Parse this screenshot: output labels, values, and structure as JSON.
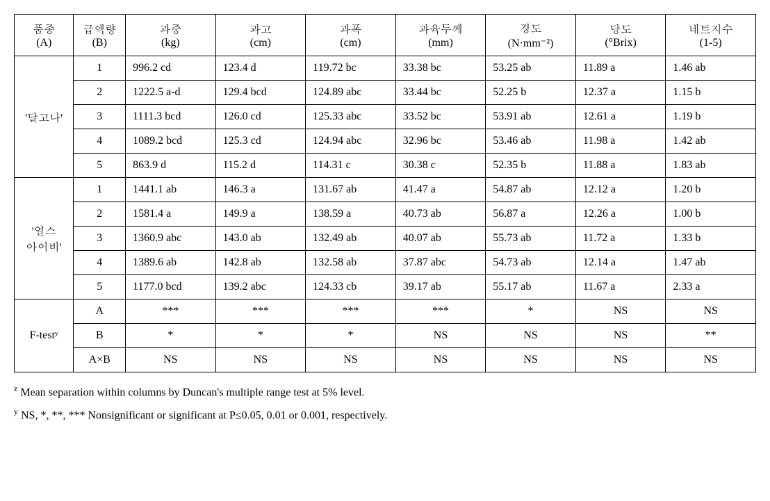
{
  "columns": [
    {
      "l1": "품종",
      "l2": "(A)"
    },
    {
      "l1": "급액량",
      "l2": "(B)"
    },
    {
      "l1": "과중",
      "l2": "(kg)"
    },
    {
      "l1": "과고",
      "l2": "(cm)"
    },
    {
      "l1": "과폭",
      "l2": "(cm)"
    },
    {
      "l1": "과육두께",
      "l2": "(mm)"
    },
    {
      "l1": "경도",
      "l2": "(N·mm⁻²)"
    },
    {
      "l1": "당도",
      "l2": "(°Brix)"
    },
    {
      "l1": "네트지수",
      "l2": "(1-5)"
    }
  ],
  "groups": [
    {
      "name": "'달고나'",
      "rows": [
        {
          "b": "1",
          "d": [
            "996.2 cd",
            "123.4 d",
            "119.72 bc",
            "33.38 bc",
            "53.25 ab",
            "11.89 a",
            "1.46 ab"
          ]
        },
        {
          "b": "2",
          "d": [
            "1222.5 a-d",
            "129.4 bcd",
            "124.89 abc",
            "33.44 bc",
            "52.25 b",
            "12.37 a",
            "1.15 b"
          ]
        },
        {
          "b": "3",
          "d": [
            "1111.3 bcd",
            "126.0 cd",
            "125.33 abc",
            "33.52 bc",
            "53.91 ab",
            "12.61 a",
            "1.19 b"
          ]
        },
        {
          "b": "4",
          "d": [
            "1089.2 bcd",
            "125.3 cd",
            "124.94 abc",
            "32.96 bc",
            "53.46 ab",
            "11.98 a",
            "1.42 ab"
          ]
        },
        {
          "b": "5",
          "d": [
            "863.9 d",
            "115.2 d",
            "114.31 c",
            "30.38 c",
            "52.35 b",
            "11.88 a",
            "1.83 ab"
          ]
        }
      ]
    },
    {
      "name": "'얼스\n아이비'",
      "rows": [
        {
          "b": "1",
          "d": [
            "1441.1 ab",
            "146.3 a",
            "131.67 ab",
            "41.47 a",
            "54.87 ab",
            "12.12 a",
            "1.20 b"
          ]
        },
        {
          "b": "2",
          "d": [
            "1581.4 a",
            "149.9 a",
            "138.59 a",
            "40.73 ab",
            "56.87 a",
            "12.26 a",
            "1.00 b"
          ]
        },
        {
          "b": "3",
          "d": [
            "1360.9 abc",
            "143.0 ab",
            "132.49 ab",
            "40.07 ab",
            "55.73 ab",
            "11.72 a",
            "1.33 b"
          ]
        },
        {
          "b": "4",
          "d": [
            "1389.6 ab",
            "142.8 ab",
            "132.58 ab",
            "37.87 abc",
            "54.73 ab",
            "12.14 a",
            "1.47 ab"
          ]
        },
        {
          "b": "5",
          "d": [
            "1177.0 bcd",
            "139.2 abc",
            "124.33 cb",
            "39.17 ab",
            "55.17 ab",
            "11.67 a",
            "2.33 a"
          ]
        }
      ]
    }
  ],
  "ftest": {
    "label": "F-testʸ",
    "rows": [
      {
        "b": "A",
        "d": [
          "***",
          "***",
          "***",
          "***",
          "*",
          "NS",
          "NS"
        ]
      },
      {
        "b": "B",
        "d": [
          "*",
          "*",
          "*",
          "NS",
          "NS",
          "NS",
          "**"
        ]
      },
      {
        "b": "A×B",
        "d": [
          "NS",
          "NS",
          "NS",
          "NS",
          "NS",
          "NS",
          "NS"
        ]
      }
    ]
  },
  "footnotes": {
    "z": "Mean separation within columns by Duncan's multiple range test at 5% level.",
    "y": "NS, *, **, *** Nonsignificant or significant at P≤0.05, 0.01 or 0.001, respectively."
  }
}
